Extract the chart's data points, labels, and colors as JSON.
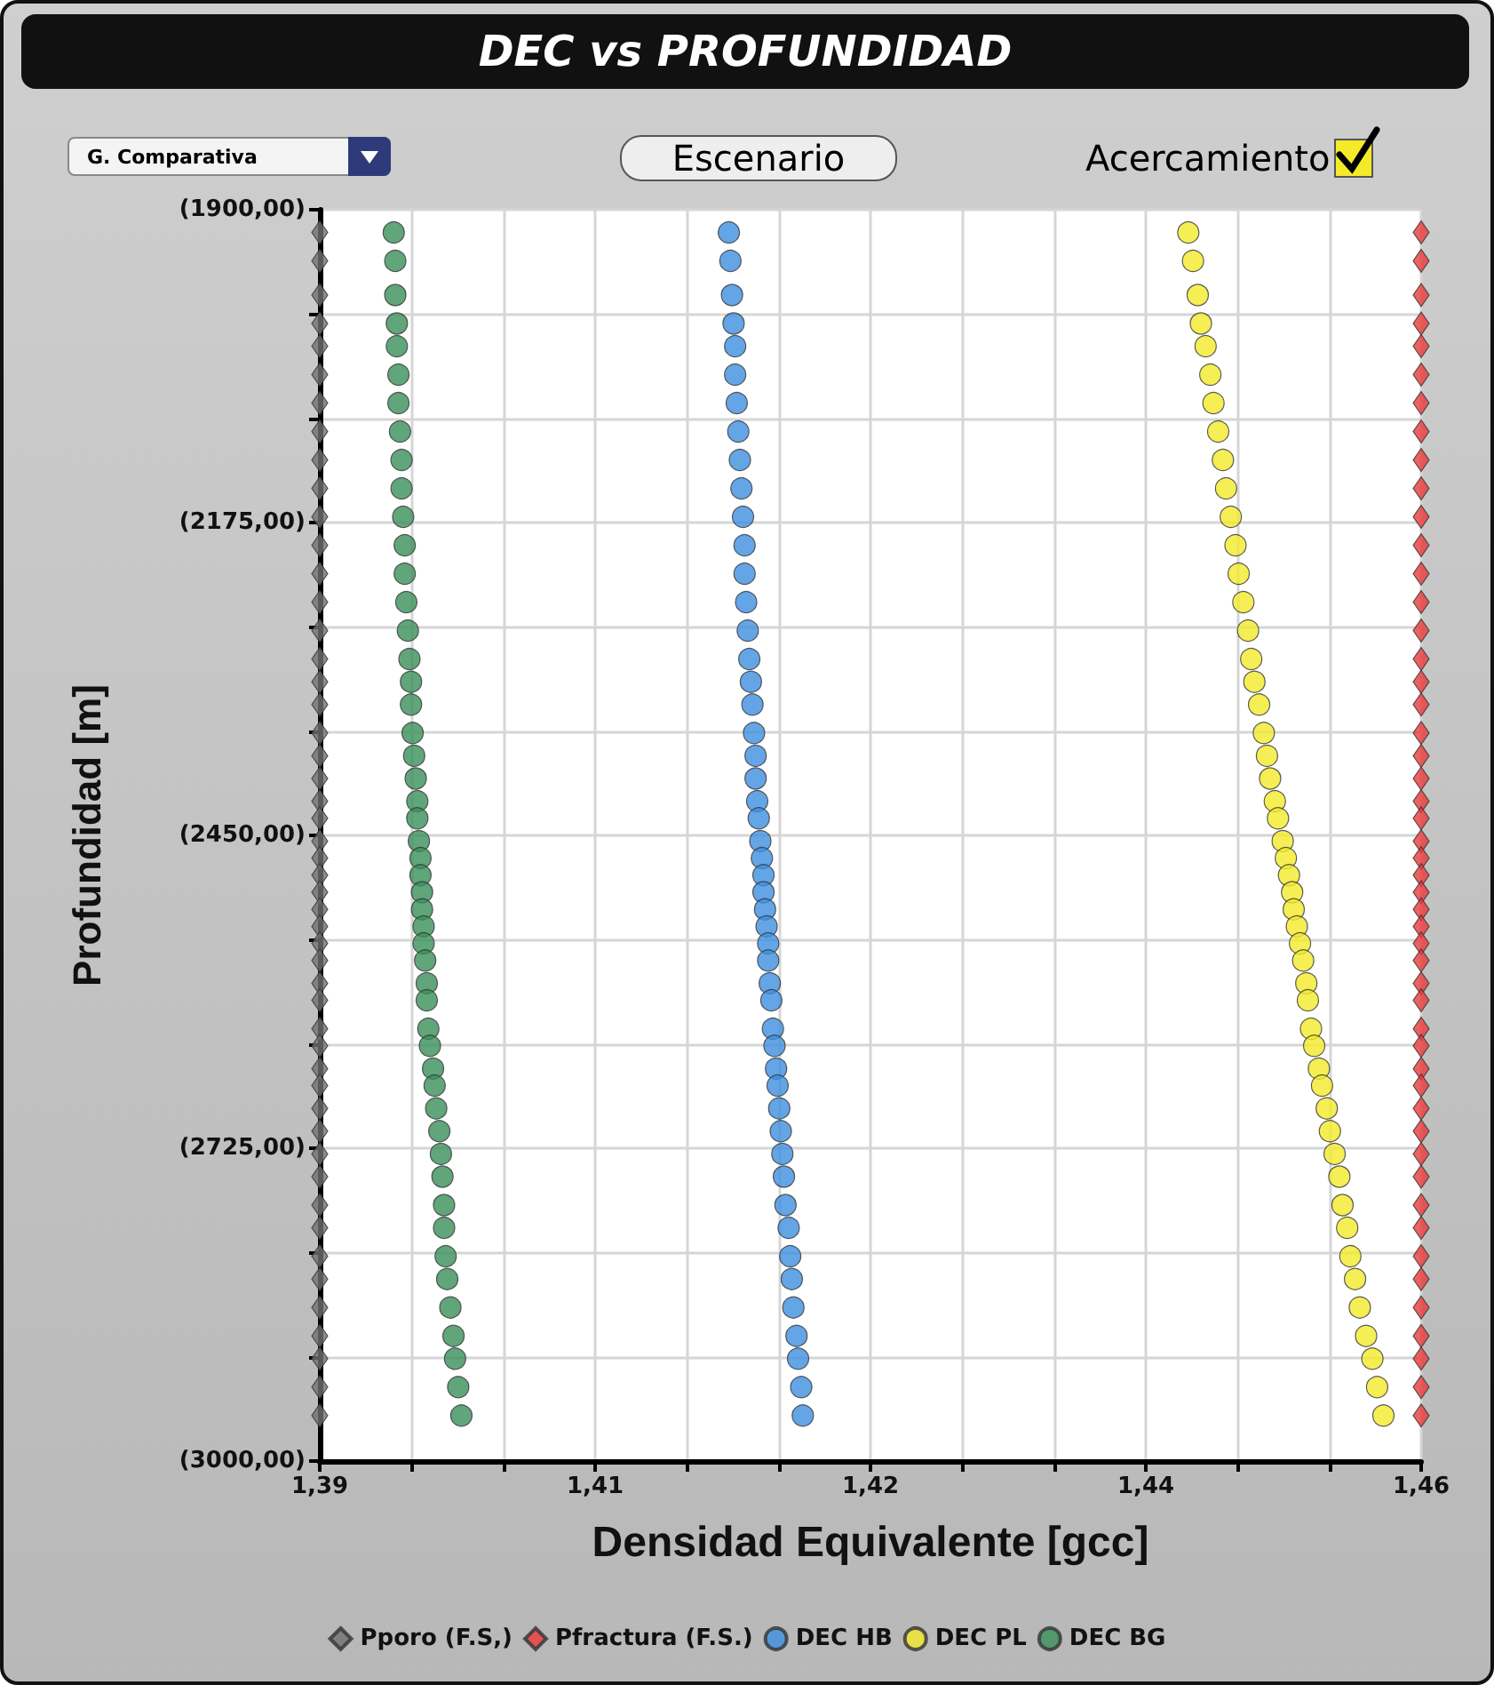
{
  "chart_data": {
    "type": "scatter",
    "title": "DEC vs PROFUNDIDAD",
    "xlabel": "Densidad Equivalente [gcc]",
    "ylabel": "Profundidad [m]",
    "annotations": [
      "G. Comparativa",
      "Escenario",
      "Acercamiento"
    ],
    "xlim": [
      1.39,
      1.46
    ],
    "xticks": [
      {
        "value": 1.39,
        "label": "1,39"
      },
      {
        "value": 1.3958,
        "label": null
      },
      {
        "value": 1.4017,
        "label": null
      },
      {
        "value": 1.4075,
        "label": "1,41"
      },
      {
        "value": 1.4133,
        "label": null
      },
      {
        "value": 1.4192,
        "label": null
      },
      {
        "value": 1.425,
        "label": "1,42"
      },
      {
        "value": 1.4308,
        "label": null
      },
      {
        "value": 1.4367,
        "label": null
      },
      {
        "value": 1.4425,
        "label": "1,44"
      },
      {
        "value": 1.4483,
        "label": null
      },
      {
        "value": 1.4542,
        "label": null
      },
      {
        "value": 1.46,
        "label": "1,46"
      }
    ],
    "ylim": [
      3000,
      1900
    ],
    "yticks": [
      {
        "value": 1900,
        "label": "(1900,00)"
      },
      {
        "value": 1991.67,
        "label": null
      },
      {
        "value": 2083.33,
        "label": null
      },
      {
        "value": 2175,
        "label": "(2175,00)"
      },
      {
        "value": 2266.67,
        "label": null
      },
      {
        "value": 2358.33,
        "label": null
      },
      {
        "value": 2450,
        "label": "(2450,00)"
      },
      {
        "value": 2541.67,
        "label": null
      },
      {
        "value": 2633.33,
        "label": null
      },
      {
        "value": 2725,
        "label": "(2725,00)"
      },
      {
        "value": 2816.67,
        "label": null
      },
      {
        "value": 2908.33,
        "label": null
      },
      {
        "value": 3000,
        "label": "(3000,00)"
      }
    ],
    "grid": true,
    "legend": "bottom",
    "series": [
      {
        "name": "Pporo (F.S,)",
        "color": "#707070",
        "marker": "diamond",
        "x": [
          1.39,
          1.39,
          1.39,
          1.39,
          1.39,
          1.39,
          1.39,
          1.39,
          1.39,
          1.39,
          1.39,
          1.39,
          1.39,
          1.39,
          1.39,
          1.39,
          1.39,
          1.39,
          1.39,
          1.39,
          1.39,
          1.39,
          1.39,
          1.39,
          1.39,
          1.39,
          1.39,
          1.39,
          1.39,
          1.39,
          1.39,
          1.39,
          1.39,
          1.39,
          1.39,
          1.39,
          1.39,
          1.39,
          1.39,
          1.39,
          1.39,
          1.39,
          1.39,
          1.39,
          1.39,
          1.39,
          1.39,
          1.39,
          1.39,
          1.39
        ],
        "values": [
          1920,
          1945,
          1975,
          2000,
          2020,
          2045,
          2070,
          2095,
          2120,
          2145,
          2170,
          2195,
          2220,
          2245,
          2270,
          2295,
          2315,
          2335,
          2360,
          2380,
          2400,
          2420,
          2435,
          2455,
          2470,
          2485,
          2500,
          2515,
          2530,
          2545,
          2560,
          2580,
          2595,
          2620,
          2635,
          2655,
          2670,
          2690,
          2710,
          2730,
          2750,
          2775,
          2795,
          2820,
          2840,
          2865,
          2890,
          2910,
          2935,
          2960
        ]
      },
      {
        "name": "Pfractura (F.S.)",
        "color": "#e83a3a",
        "marker": "diamond",
        "x": [
          1.46,
          1.46,
          1.46,
          1.46,
          1.46,
          1.46,
          1.46,
          1.46,
          1.46,
          1.46,
          1.46,
          1.46,
          1.46,
          1.46,
          1.46,
          1.46,
          1.46,
          1.46,
          1.46,
          1.46,
          1.46,
          1.46,
          1.46,
          1.46,
          1.46,
          1.46,
          1.46,
          1.46,
          1.46,
          1.46,
          1.46,
          1.46,
          1.46,
          1.46,
          1.46,
          1.46,
          1.46,
          1.46,
          1.46,
          1.46,
          1.46,
          1.46,
          1.46,
          1.46,
          1.46,
          1.46,
          1.46,
          1.46,
          1.46,
          1.46
        ],
        "values": [
          1920,
          1945,
          1975,
          2000,
          2020,
          2045,
          2070,
          2095,
          2120,
          2145,
          2170,
          2195,
          2220,
          2245,
          2270,
          2295,
          2315,
          2335,
          2360,
          2380,
          2400,
          2420,
          2435,
          2455,
          2470,
          2485,
          2500,
          2515,
          2530,
          2545,
          2560,
          2580,
          2595,
          2620,
          2635,
          2655,
          2670,
          2690,
          2710,
          2730,
          2750,
          2775,
          2795,
          2820,
          2840,
          2865,
          2890,
          2910,
          2935,
          2960
        ]
      },
      {
        "name": "DEC HB",
        "color": "#3d8fe0",
        "marker": "circle",
        "x": [
          1.416,
          1.4161,
          1.4162,
          1.4163,
          1.4164,
          1.4164,
          1.4165,
          1.4166,
          1.4167,
          1.4168,
          1.4169,
          1.417,
          1.417,
          1.4171,
          1.4172,
          1.4173,
          1.4174,
          1.4175,
          1.4176,
          1.4177,
          1.4177,
          1.4178,
          1.4179,
          1.418,
          1.4181,
          1.4182,
          1.4182,
          1.4183,
          1.4184,
          1.4185,
          1.4185,
          1.4186,
          1.4187,
          1.4188,
          1.4189,
          1.419,
          1.4191,
          1.4192,
          1.4193,
          1.4194,
          1.4195,
          1.4196,
          1.4198,
          1.4199,
          1.42,
          1.4201,
          1.4203,
          1.4204,
          1.4206,
          1.4207
        ],
        "values": [
          1920,
          1945,
          1975,
          2000,
          2020,
          2045,
          2070,
          2095,
          2120,
          2145,
          2170,
          2195,
          2220,
          2245,
          2270,
          2295,
          2315,
          2335,
          2360,
          2380,
          2400,
          2420,
          2435,
          2455,
          2470,
          2485,
          2500,
          2515,
          2530,
          2545,
          2560,
          2580,
          2595,
          2620,
          2635,
          2655,
          2670,
          2690,
          2710,
          2730,
          2750,
          2775,
          2795,
          2820,
          2840,
          2865,
          2890,
          2910,
          2935,
          2960
        ]
      },
      {
        "name": "DEC PL",
        "color": "#f2ea2a",
        "marker": "circle",
        "x": [
          1.4452,
          1.4455,
          1.4458,
          1.446,
          1.4463,
          1.4466,
          1.4468,
          1.4471,
          1.4474,
          1.4476,
          1.4479,
          1.4482,
          1.4484,
          1.4487,
          1.449,
          1.4492,
          1.4494,
          1.4497,
          1.45,
          1.4502,
          1.4504,
          1.4507,
          1.4509,
          1.4512,
          1.4514,
          1.4516,
          1.4518,
          1.4519,
          1.4521,
          1.4523,
          1.4525,
          1.4527,
          1.4528,
          1.453,
          1.4532,
          1.4535,
          1.4537,
          1.454,
          1.4542,
          1.4545,
          1.4548,
          1.455,
          1.4553,
          1.4555,
          1.4558,
          1.4561,
          1.4565,
          1.4569,
          1.4572,
          1.4576
        ],
        "values": [
          1920,
          1945,
          1975,
          2000,
          2020,
          2045,
          2070,
          2095,
          2120,
          2145,
          2170,
          2195,
          2220,
          2245,
          2270,
          2295,
          2315,
          2335,
          2360,
          2380,
          2400,
          2420,
          2435,
          2455,
          2470,
          2485,
          2500,
          2515,
          2530,
          2545,
          2560,
          2580,
          2595,
          2620,
          2635,
          2655,
          2670,
          2690,
          2710,
          2730,
          2750,
          2775,
          2795,
          2820,
          2840,
          2865,
          2890,
          2910,
          2935,
          2960
        ]
      },
      {
        "name": "DEC BG",
        "color": "#3a8f5a",
        "marker": "circle",
        "x": [
          1.3947,
          1.3948,
          1.3948,
          1.3949,
          1.3949,
          1.395,
          1.395,
          1.3951,
          1.3952,
          1.3952,
          1.3953,
          1.3954,
          1.3954,
          1.3955,
          1.3956,
          1.3957,
          1.3958,
          1.3958,
          1.3959,
          1.396,
          1.3961,
          1.3962,
          1.3962,
          1.3963,
          1.3964,
          1.3964,
          1.3965,
          1.3965,
          1.3966,
          1.3966,
          1.3967,
          1.3968,
          1.3968,
          1.3969,
          1.397,
          1.3972,
          1.3973,
          1.3974,
          1.3976,
          1.3977,
          1.3978,
          1.3979,
          1.3979,
          1.398,
          1.3981,
          1.3983,
          1.3985,
          1.3986,
          1.3988,
          1.399
        ],
        "values": [
          1920,
          1945,
          1975,
          2000,
          2020,
          2045,
          2070,
          2095,
          2120,
          2145,
          2170,
          2195,
          2220,
          2245,
          2270,
          2295,
          2315,
          2335,
          2360,
          2380,
          2400,
          2420,
          2435,
          2455,
          2470,
          2485,
          2500,
          2515,
          2530,
          2545,
          2560,
          2580,
          2595,
          2620,
          2635,
          2655,
          2670,
          2690,
          2710,
          2730,
          2750,
          2775,
          2795,
          2820,
          2840,
          2865,
          2890,
          2910,
          2935,
          2960
        ]
      }
    ]
  }
}
